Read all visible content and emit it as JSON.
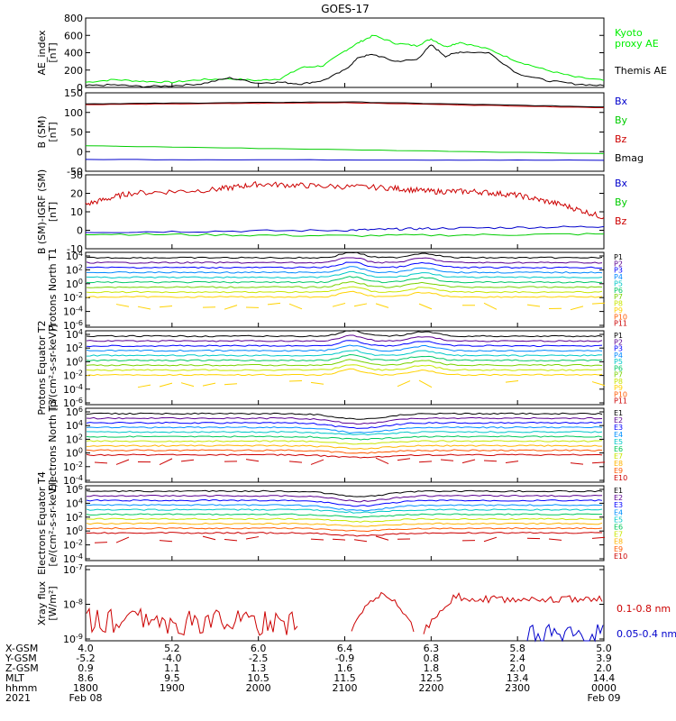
{
  "title": "GOES-17",
  "colors": {
    "black": "#000000",
    "blue": "#0000cc",
    "green": "#00cc00",
    "red": "#cc0000",
    "bright_green": "#00ee00",
    "darkred": "#880000"
  },
  "legend_groups": {
    "p_labels": [
      "P1",
      "P2",
      "P3",
      "P4",
      "P5",
      "P6",
      "P7",
      "P8",
      "P9",
      "P10",
      "P11"
    ],
    "p_colors": [
      "#000000",
      "#5a0090",
      "#0000ff",
      "#0088ff",
      "#00c8c8",
      "#00c864",
      "#78d200",
      "#c8e600",
      "#ffd200",
      "#ff5a00",
      "#cc0000"
    ],
    "e_labels": [
      "E1",
      "E2",
      "E3",
      "E4",
      "E5",
      "E6",
      "E7",
      "E8",
      "E9",
      "E10"
    ],
    "e_colors": [
      "#000000",
      "#5a0090",
      "#0000ff",
      "#0090ff",
      "#00c8c8",
      "#00c85a",
      "#c8e600",
      "#ffb400",
      "#ff5a00",
      "#cc0000"
    ]
  },
  "chart_data": [
    {
      "type": "line",
      "ylabel": "AE_index [nT]",
      "ylim": [
        0,
        800
      ],
      "yticks": [
        "0",
        "200",
        "400",
        "600",
        "800"
      ],
      "legend": [
        "Kyoto proxy AE",
        "Themis AE"
      ],
      "series": [
        {
          "name": "Kyoto proxy AE",
          "color": "#00ee00",
          "x": [
            "18:00",
            "18:20",
            "18:40",
            "19:00",
            "19:20",
            "19:40",
            "20:00",
            "20:15",
            "20:30",
            "20:45",
            "21:00",
            "21:10",
            "21:20",
            "21:35",
            "21:50",
            "22:00",
            "22:10",
            "22:20",
            "22:40",
            "23:00",
            "23:20",
            "23:40",
            "00:00"
          ],
          "values": [
            60,
            90,
            70,
            60,
            90,
            100,
            80,
            100,
            230,
            250,
            420,
            520,
            600,
            510,
            480,
            560,
            470,
            520,
            440,
            300,
            200,
            120,
            80
          ]
        },
        {
          "name": "Themis AE",
          "color": "#000000",
          "x": [
            "18:00",
            "18:20",
            "18:40",
            "19:00",
            "19:20",
            "19:40",
            "20:00",
            "20:15",
            "20:30",
            "20:45",
            "21:00",
            "21:10",
            "21:20",
            "21:35",
            "21:50",
            "22:00",
            "22:10",
            "22:20",
            "22:40",
            "23:00",
            "23:20",
            "23:40",
            "00:00"
          ],
          "values": [
            20,
            30,
            10,
            20,
            40,
            110,
            50,
            60,
            40,
            80,
            200,
            350,
            380,
            300,
            320,
            490,
            360,
            410,
            400,
            160,
            80,
            40,
            20
          ]
        }
      ]
    },
    {
      "type": "line",
      "ylabel": "B (SM) [nT]",
      "ylim": [
        -50,
        150
      ],
      "yticks": [
        "-50",
        "0",
        "50",
        "100",
        "150"
      ],
      "legend": [
        "Bx",
        "By",
        "Bz",
        "Bmag"
      ],
      "series": [
        {
          "name": "Bx",
          "color": "#0000cc",
          "x": [
            "18:00",
            "00:00"
          ],
          "values": [
            -20,
            -22
          ]
        },
        {
          "name": "By",
          "color": "#00cc00",
          "x": [
            "18:00",
            "00:00"
          ],
          "values": [
            15,
            -5
          ]
        },
        {
          "name": "Bz",
          "color": "#cc0000",
          "x": [
            "18:00",
            "21:00",
            "00:00"
          ],
          "values": [
            120,
            125,
            112
          ]
        },
        {
          "name": "Bmag",
          "color": "#000000",
          "x": [
            "18:00",
            "21:00",
            "00:00"
          ],
          "values": [
            122,
            127,
            114
          ]
        }
      ]
    },
    {
      "type": "line",
      "ylabel": "B (SM)-IGRF (SM) [nT]",
      "ylim": [
        -10,
        30
      ],
      "yticks": [
        "-10",
        "0",
        "10",
        "20",
        "30"
      ],
      "legend": [
        "Bx",
        "By",
        "Bz"
      ],
      "series": [
        {
          "name": "Bx",
          "color": "#0000cc",
          "x": [
            "18:00",
            "21:00",
            "22:00",
            "00:00"
          ],
          "values": [
            -1,
            0,
            1,
            2
          ]
        },
        {
          "name": "By",
          "color": "#00cc00",
          "x": [
            "18:00",
            "21:00",
            "00:00"
          ],
          "values": [
            -2,
            -3,
            -2
          ]
        },
        {
          "name": "Bz",
          "color": "#cc0000",
          "x": [
            "18:00",
            "18:30",
            "19:30",
            "20:00",
            "20:40",
            "21:30",
            "22:00",
            "22:30",
            "23:00",
            "23:30",
            "00:00"
          ],
          "values": [
            14,
            20,
            22,
            25,
            24,
            23,
            21,
            21,
            19,
            14,
            7
          ]
        }
      ]
    },
    {
      "type": "line",
      "ylabel": "Protons North T1",
      "yscale": "log",
      "yticks": [
        "10^4",
        "10^2",
        "10^0",
        "10^-2",
        "10^-4",
        "10^-6"
      ],
      "legend": [
        "P1",
        "P2",
        "P3",
        "P4",
        "P5",
        "P6",
        "P7",
        "P8",
        "P9",
        "P10",
        "P11"
      ]
    },
    {
      "type": "line",
      "ylabel": "Protons Equator T2 [p/(cm²-s-sr-keV)]",
      "yscale": "log",
      "yticks": [
        "10^4",
        "10^2",
        "10^0",
        "10^-2",
        "10^-4",
        "10^-6"
      ],
      "legend": [
        "P1",
        "P2",
        "P3",
        "P4",
        "P5",
        "P6",
        "P7",
        "P8",
        "P9",
        "P10",
        "P11"
      ]
    },
    {
      "type": "line",
      "ylabel": "Electrons North T3",
      "yscale": "log",
      "yticks": [
        "10^6",
        "10^4",
        "10^2",
        "10^0",
        "10^-2",
        "10^-4"
      ],
      "legend": [
        "E1",
        "E2",
        "E3",
        "E4",
        "E5",
        "E6",
        "E7",
        "E8",
        "E9",
        "E10"
      ]
    },
    {
      "type": "line",
      "ylabel": "Electrons Equator T4 [e/(cm²-s-sr-keV)]",
      "yscale": "log",
      "yticks": [
        "10^6",
        "10^4",
        "10^2",
        "10^0",
        "10^-2",
        "10^-4"
      ],
      "legend": [
        "E1",
        "E2",
        "E3",
        "E4",
        "E5",
        "E6",
        "E7",
        "E8",
        "E9",
        "E10"
      ]
    },
    {
      "type": "line",
      "ylabel": "Xray flux [W/m²]",
      "yscale": "log",
      "yticks": [
        "10^-7",
        "10^-8",
        "10^-9"
      ],
      "legend": [
        "0.1-0.8 nm",
        "0.05-0.4 nm"
      ],
      "series": [
        {
          "name": "0.1-0.8 nm",
          "color": "#cc0000"
        },
        {
          "name": "0.05-0.4 nm",
          "color": "#0000cc"
        }
      ]
    }
  ],
  "xaxis": {
    "row_labels": [
      "X-GSM",
      "Y-GSM",
      "Z-GSM",
      "MLT",
      "hhmm",
      "2021"
    ],
    "columns": [
      {
        "values": [
          "4.0",
          "-5.2",
          "0.9",
          "8.6",
          "1800"
        ],
        "date": "Feb 08"
      },
      {
        "values": [
          "5.2",
          "-4.0",
          "1.1",
          "9.5",
          "1900"
        ],
        "date": ""
      },
      {
        "values": [
          "6.0",
          "-2.5",
          "1.3",
          "10.5",
          "2000"
        ],
        "date": ""
      },
      {
        "values": [
          "6.4",
          "-0.9",
          "1.6",
          "11.5",
          "2100"
        ],
        "date": ""
      },
      {
        "values": [
          "6.3",
          "0.8",
          "1.8",
          "12.5",
          "2200"
        ],
        "date": ""
      },
      {
        "values": [
          "5.8",
          "2.4",
          "2.0",
          "13.4",
          "2300"
        ],
        "date": ""
      },
      {
        "values": [
          "5.0",
          "3.9",
          "2.0",
          "14.4",
          "0000"
        ],
        "date": "Feb 09"
      }
    ]
  }
}
